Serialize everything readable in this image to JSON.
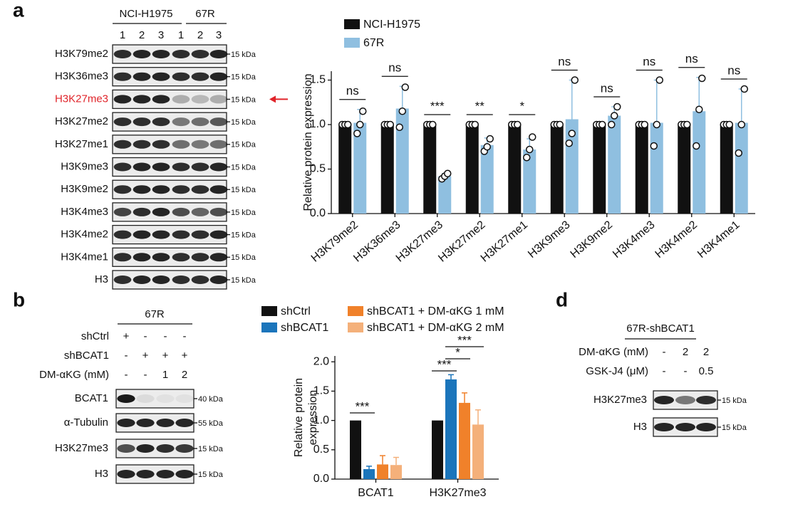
{
  "panel_a": {
    "label": "a",
    "groups": [
      "NCI-H1975",
      "67R"
    ],
    "lanes": [
      "1",
      "2",
      "3",
      "1",
      "2",
      "3"
    ],
    "rows": [
      {
        "label": "H3K79me2",
        "kda": "15 kDa"
      },
      {
        "label": "H3K36me3",
        "kda": "15 kDa"
      },
      {
        "label": "H3K27me3",
        "kda": "15 kDa",
        "color": "#e0242a"
      },
      {
        "label": "H3K27me2",
        "kda": "15 kDa"
      },
      {
        "label": "H3K27me1",
        "kda": "15 kDa"
      },
      {
        "label": "H3K9me3",
        "kda": "15 kDa"
      },
      {
        "label": "H3K9me2",
        "kda": "15 kDa"
      },
      {
        "label": "H3K4me3",
        "kda": "15 kDa"
      },
      {
        "label": "H3K4me2",
        "kda": "15 kDa"
      },
      {
        "label": "H3K4me1",
        "kda": "15 kDa"
      },
      {
        "label": "H3",
        "kda": "15 kDa"
      }
    ]
  },
  "panel_b": {
    "label": "b",
    "group": "67R",
    "conditions": [
      {
        "label": "shCtrl",
        "marks": [
          "+",
          "-",
          "-",
          "-"
        ]
      },
      {
        "label": "shBCAT1",
        "marks": [
          "-",
          "+",
          "+",
          "+"
        ]
      },
      {
        "label": "DM-αKG (mM)",
        "marks": [
          "-",
          "-",
          "1",
          "2"
        ]
      }
    ],
    "rows": [
      {
        "label": "BCAT1",
        "kda": "40 kDa"
      },
      {
        "label": "α-Tubulin",
        "kda": "55 kDa"
      },
      {
        "label": "H3K27me3",
        "kda": "15 kDa"
      },
      {
        "label": "H3",
        "kda": "15 kDa"
      }
    ]
  },
  "panel_d": {
    "label": "d",
    "group": "67R-shBCAT1",
    "conditions": [
      {
        "label": "DM-αKG (mM)",
        "marks": [
          "-",
          "2",
          "2"
        ]
      },
      {
        "label": "GSK-J4 (μM)",
        "marks": [
          "-",
          "-",
          "0.5"
        ]
      }
    ],
    "rows": [
      {
        "label": "H3K27me3",
        "kda": "15 kDa"
      },
      {
        "label": "H3",
        "kda": "15 kDa"
      }
    ]
  },
  "chart_data": [
    {
      "type": "bar",
      "ylabel": [
        "Relative protein expression"
      ],
      "categories": [
        "H3K79me2",
        "H3K36me3",
        "H3K27me3",
        "H3K27me2",
        "H3K27me1",
        "H3K9me3",
        "H3K9me2",
        "H3K4me3",
        "H3K4me2",
        "H3K4me1"
      ],
      "ylim": [
        0,
        1.6
      ],
      "yticks": [
        {
          "value": 0,
          "label": "0.0"
        },
        0.5,
        {
          "value": 1,
          "label": "1.0"
        },
        1.5
      ],
      "annotations": [
        "ns",
        "ns",
        "***",
        "**",
        "*",
        "ns",
        "ns",
        "ns",
        "ns",
        "ns"
      ],
      "series": [
        {
          "name": "NCI-H1975",
          "color": "#111111",
          "values": [
            1,
            1,
            1,
            1,
            1,
            1,
            1,
            1,
            1,
            1
          ],
          "errors": [
            0,
            0,
            0,
            0,
            0,
            0,
            0,
            0,
            0,
            0
          ],
          "points": [
            [
              1,
              1,
              1
            ],
            [
              1,
              1,
              1
            ],
            [
              1,
              1,
              1
            ],
            [
              1,
              1,
              1
            ],
            [
              1,
              1,
              1
            ],
            [
              1,
              1,
              1
            ],
            [
              1,
              1,
              1
            ],
            [
              1,
              1,
              1
            ],
            [
              1,
              1,
              1
            ],
            [
              1,
              1,
              1
            ]
          ]
        },
        {
          "name": "67R",
          "color": "#8fbfe0",
          "values": [
            1.02,
            1.18,
            0.42,
            0.77,
            0.72,
            1.06,
            1.1,
            1.02,
            1.15,
            1.02
          ],
          "errors": [
            0.15,
            0.25,
            0.03,
            0.08,
            0.12,
            0.44,
            0.1,
            0.48,
            0.38,
            0.38
          ],
          "points": [
            [
              0.9,
              1.0,
              1.15
            ],
            [
              0.97,
              1.15,
              1.42
            ],
            [
              0.39,
              0.42,
              0.45
            ],
            [
              0.7,
              0.75,
              0.84
            ],
            [
              0.63,
              0.72,
              0.86
            ],
            [
              0.79,
              0.9,
              1.5
            ],
            [
              1.0,
              1.1,
              1.2
            ],
            [
              0.76,
              1.0,
              1.5
            ],
            [
              0.76,
              1.17,
              1.52
            ],
            [
              0.68,
              1.0,
              1.4
            ]
          ]
        }
      ]
    },
    {
      "type": "bar",
      "ylabel": [
        "Relative protein",
        "expression"
      ],
      "categories": [
        "BCAT1",
        "H3K27me3"
      ],
      "ylim": [
        0,
        2.1
      ],
      "yticks": [
        {
          "value": 0,
          "label": "0.0"
        },
        0.5,
        {
          "value": 1,
          "label": "1.0"
        },
        1.5,
        {
          "value": 2,
          "label": "2.0"
        }
      ],
      "annotations": [
        "***",
        "***",
        "*",
        "***"
      ],
      "series": [
        {
          "name": "shCtrl",
          "color": "#111111",
          "values": [
            1,
            1
          ],
          "errors": [
            0,
            0
          ]
        },
        {
          "name": "shBCAT1",
          "color": "#1b75bb",
          "values": [
            0.17,
            1.7
          ],
          "errors": [
            0.05,
            0.08
          ]
        },
        {
          "name": "shBCAT1 + DM-αKG 1 mM",
          "color": "#f0812a",
          "values": [
            0.25,
            1.3
          ],
          "errors": [
            0.15,
            0.17
          ]
        },
        {
          "name": "shBCAT1 + DM-αKG 2 mM",
          "color": "#f4b07a",
          "values": [
            0.24,
            0.93
          ],
          "errors": [
            0.13,
            0.25
          ]
        }
      ]
    }
  ]
}
